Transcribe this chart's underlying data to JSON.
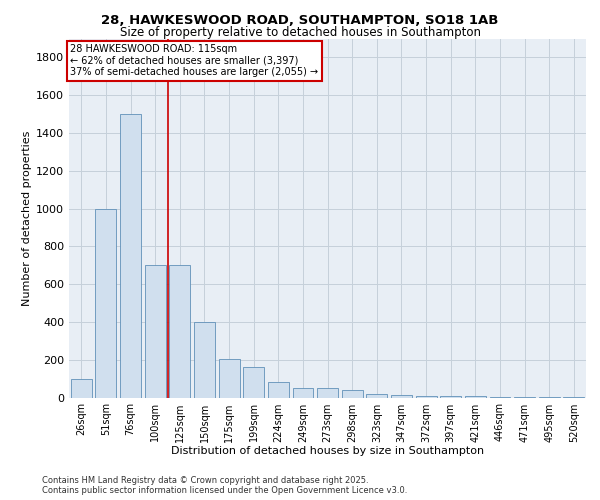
{
  "title_line1": "28, HAWKESWOOD ROAD, SOUTHAMPTON, SO18 1AB",
  "title_line2": "Size of property relative to detached houses in Southampton",
  "xlabel": "Distribution of detached houses by size in Southampton",
  "ylabel": "Number of detached properties",
  "categories": [
    "26sqm",
    "51sqm",
    "76sqm",
    "100sqm",
    "125sqm",
    "150sqm",
    "175sqm",
    "199sqm",
    "224sqm",
    "249sqm",
    "273sqm",
    "298sqm",
    "323sqm",
    "347sqm",
    "372sqm",
    "397sqm",
    "421sqm",
    "446sqm",
    "471sqm",
    "495sqm",
    "520sqm"
  ],
  "values": [
    100,
    1000,
    1500,
    700,
    700,
    400,
    205,
    160,
    80,
    52,
    50,
    40,
    20,
    12,
    10,
    10,
    8,
    3,
    2,
    2,
    2
  ],
  "bar_color": "#d0dfee",
  "bar_edge_color": "#6090b8",
  "grid_color": "#c5d0da",
  "background_color": "#e8eef5",
  "vline_x": 3.5,
  "vline_color": "#cc0000",
  "annotation_text": "28 HAWKESWOOD ROAD: 115sqm\n← 62% of detached houses are smaller (3,397)\n37% of semi-detached houses are larger (2,055) →",
  "annotation_box_edgecolor": "#cc0000",
  "footer_line1": "Contains HM Land Registry data © Crown copyright and database right 2025.",
  "footer_line2": "Contains public sector information licensed under the Open Government Licence v3.0.",
  "ylim_max": 1900,
  "yticks": [
    0,
    200,
    400,
    600,
    800,
    1000,
    1200,
    1400,
    1600,
    1800
  ]
}
